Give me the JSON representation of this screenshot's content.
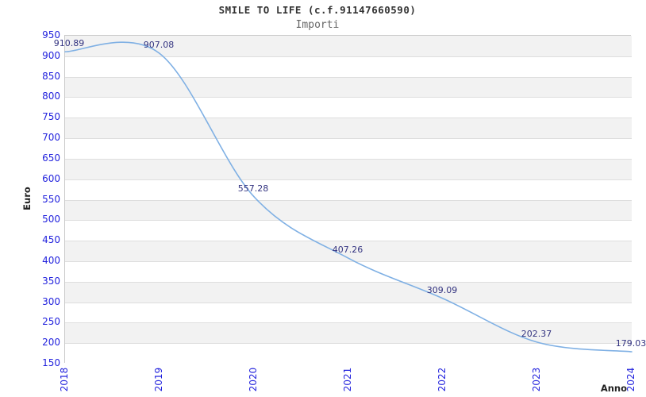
{
  "header": {
    "title": "SMILE TO LIFE (c.f.91147660590)",
    "subtitle": "Importi"
  },
  "chart_data": {
    "type": "line",
    "title": "SMILE TO LIFE (c.f.91147660590)",
    "subtitle": "Importi",
    "xlabel": "Anno",
    "ylabel": "Euro",
    "categories": [
      "2018",
      "2019",
      "2020",
      "2021",
      "2022",
      "2023",
      "2024"
    ],
    "series": [
      {
        "name": "Importi",
        "values": [
          910.89,
          907.08,
          557.28,
          407.26,
          309.09,
          202.37,
          179.03
        ]
      }
    ],
    "point_labels": [
      "910.89",
      "907.08",
      "557.28",
      "407.26",
      "309.09",
      "202.37",
      "179.03"
    ],
    "ylim": [
      150,
      950
    ],
    "ytick_step": 50,
    "grid": true,
    "legend": "none",
    "band_fill": "alternating",
    "colors": {
      "line": "#7fb0e4",
      "tick_label": "#2222dd",
      "point_label": "#333380",
      "band_gray": "#f2f2f2",
      "gridline": "#dedede",
      "plot_border": "#c9c9c9",
      "title": "#333333",
      "subtitle": "#666666",
      "axis_title": "#222222",
      "background": "#ffffff"
    }
  }
}
